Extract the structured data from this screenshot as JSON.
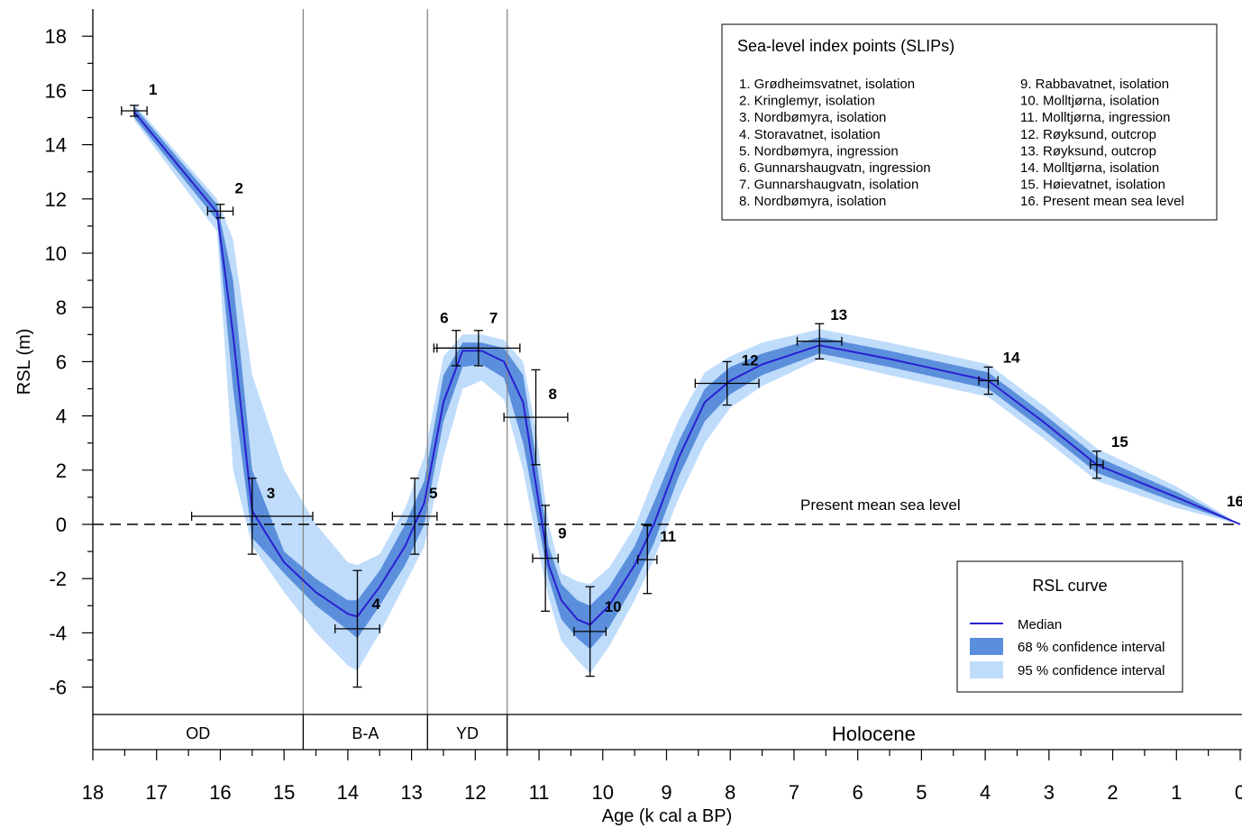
{
  "chart_data": {
    "type": "line",
    "xlabel": "Age (k cal a BP)",
    "ylabel": "RSL (m)",
    "xlim": [
      18,
      0
    ],
    "ylim": [
      -7,
      18.5
    ],
    "x_reversed": true,
    "x_ticks": [
      18,
      17,
      16,
      15,
      14,
      13,
      12,
      11,
      10,
      9,
      8,
      7,
      6,
      5,
      4,
      3,
      2,
      1,
      0
    ],
    "y_ticks": [
      -6,
      -4,
      -2,
      0,
      2,
      4,
      6,
      8,
      10,
      12,
      14,
      16,
      18
    ],
    "legend_position": "bottom-right",
    "colors": {
      "median": "#2a1fd0",
      "ci68": "#5b8fdc",
      "ci95": "#bfdcfb",
      "errorbar": "#000000"
    },
    "reference_line": {
      "y": 0,
      "label": "Present mean sea level",
      "style": "dashed"
    },
    "chronozone_boundaries": [
      14.7,
      12.75,
      11.5
    ],
    "chronozones": [
      {
        "label": "OD",
        "from": 18,
        "to": 14.7
      },
      {
        "label": "B-A",
        "from": 14.7,
        "to": 12.75
      },
      {
        "label": "YD",
        "from": 12.75,
        "to": 11.5
      },
      {
        "label": "Holocene",
        "from": 11.5,
        "to": 0
      }
    ],
    "series": [
      {
        "name": "Median",
        "x": [
          17.35,
          16.05,
          15.8,
          15.5,
          15.0,
          14.5,
          14.0,
          13.85,
          13.5,
          13.1,
          12.8,
          12.5,
          12.2,
          11.9,
          11.55,
          11.25,
          11.05,
          10.85,
          10.65,
          10.4,
          10.2,
          9.9,
          9.5,
          9.2,
          8.8,
          8.4,
          8.0,
          7.5,
          6.6,
          5.5,
          3.95,
          3.1,
          2.25,
          1.0,
          0.0
        ],
        "y": [
          15.2,
          11.5,
          7.0,
          0.5,
          -1.4,
          -2.5,
          -3.3,
          -3.4,
          -2.3,
          -0.8,
          0.8,
          4.5,
          6.4,
          6.4,
          6.0,
          4.5,
          1.5,
          -1.5,
          -2.8,
          -3.5,
          -3.7,
          -3.0,
          -1.5,
          0.0,
          2.5,
          4.5,
          5.3,
          5.9,
          6.6,
          6.1,
          5.3,
          3.8,
          2.2,
          1.0,
          0.0
        ]
      },
      {
        "name": "68 % confidence interval",
        "x": [
          17.35,
          16.05,
          15.8,
          15.5,
          15.0,
          14.5,
          14.0,
          13.85,
          13.5,
          13.1,
          12.8,
          12.5,
          12.2,
          11.9,
          11.55,
          11.25,
          11.05,
          10.85,
          10.65,
          10.4,
          10.2,
          9.9,
          9.5,
          9.2,
          8.8,
          8.4,
          8.0,
          7.5,
          6.6,
          5.5,
          3.95,
          3.1,
          2.25,
          1.0,
          0.0
        ],
        "lower": [
          15.0,
          11.2,
          5.0,
          -0.5,
          -1.8,
          -3.0,
          -3.9,
          -4.2,
          -3.0,
          -1.5,
          0.0,
          3.8,
          5.8,
          5.9,
          5.4,
          3.0,
          0.5,
          -2.0,
          -3.5,
          -4.2,
          -4.6,
          -3.8,
          -2.2,
          -0.7,
          1.8,
          3.8,
          4.8,
          5.5,
          6.3,
          5.8,
          5.0,
          3.5,
          1.9,
          0.8,
          0.0
        ],
        "upper": [
          15.4,
          11.8,
          9.0,
          2.0,
          -1.0,
          -2.0,
          -2.8,
          -2.8,
          -1.7,
          0.0,
          1.6,
          5.5,
          6.7,
          6.7,
          6.5,
          5.5,
          2.5,
          -0.8,
          -2.2,
          -2.8,
          -3.0,
          -2.3,
          -0.8,
          0.8,
          3.1,
          5.0,
          5.8,
          6.3,
          6.9,
          6.4,
          5.6,
          4.1,
          2.5,
          1.2,
          0.0
        ]
      },
      {
        "name": "95 % confidence interval",
        "x": [
          17.35,
          16.05,
          15.8,
          15.5,
          15.0,
          14.5,
          14.0,
          13.85,
          13.5,
          13.1,
          12.8,
          12.5,
          12.2,
          11.9,
          11.55,
          11.25,
          11.05,
          10.85,
          10.65,
          10.4,
          10.2,
          9.9,
          9.5,
          9.2,
          8.8,
          8.4,
          8.0,
          7.5,
          6.6,
          5.5,
          3.95,
          3.1,
          2.25,
          1.0,
          0.0
        ],
        "lower": [
          14.9,
          10.8,
          2.0,
          -0.8,
          -2.5,
          -4.0,
          -5.2,
          -5.4,
          -4.0,
          -2.2,
          -0.8,
          2.5,
          5.0,
          5.3,
          4.6,
          2.0,
          -0.5,
          -2.7,
          -4.3,
          -5.0,
          -5.5,
          -4.5,
          -2.8,
          -1.3,
          1.0,
          3.0,
          4.3,
          5.1,
          6.1,
          5.5,
          4.7,
          3.2,
          1.6,
          0.6,
          0.0
        ],
        "upper": [
          15.5,
          12.0,
          10.5,
          5.5,
          2.0,
          0.0,
          -1.4,
          -1.5,
          -1.1,
          0.6,
          2.5,
          6.2,
          7.0,
          7.0,
          6.8,
          6.0,
          3.5,
          0.0,
          -1.8,
          -2.1,
          -2.2,
          -1.6,
          -0.1,
          1.7,
          3.9,
          5.6,
          6.2,
          6.7,
          7.2,
          6.7,
          5.9,
          4.4,
          2.8,
          1.4,
          0.0
        ]
      }
    ],
    "slips": [
      {
        "id": "1",
        "age": 17.35,
        "rsl": 15.25,
        "age_err": 0.2,
        "rsl_err": 0.2
      },
      {
        "id": "2",
        "age": 16.0,
        "rsl": 11.55,
        "age_err": 0.2,
        "rsl_err": 0.25
      },
      {
        "id": "3",
        "age": 15.5,
        "rsl": 0.3,
        "age_err": 0.95,
        "rsl_err": 1.4
      },
      {
        "id": "4",
        "age": 13.85,
        "rsl": -3.85,
        "age_err": 0.35,
        "rsl_err": 2.15
      },
      {
        "id": "5",
        "age": 12.95,
        "rsl": 0.3,
        "age_err": 0.35,
        "rsl_err": 1.4
      },
      {
        "id": "6",
        "age": 12.3,
        "rsl": 6.5,
        "age_err": 0.35,
        "rsl_err": 0.65
      },
      {
        "id": "7",
        "age": 11.95,
        "rsl": 6.5,
        "age_err": 0.65,
        "rsl_err": 0.65
      },
      {
        "id": "8",
        "age": 11.05,
        "rsl": 3.95,
        "age_err": 0.5,
        "rsl_err": 1.75
      },
      {
        "id": "9",
        "age": 10.9,
        "rsl": -1.25,
        "age_err": 0.2,
        "rsl_err": 1.95
      },
      {
        "id": "10",
        "age": 10.2,
        "rsl": -3.95,
        "age_err": 0.25,
        "rsl_err": 1.65
      },
      {
        "id": "11",
        "age": 9.3,
        "rsl": -1.3,
        "age_err": 0.15,
        "rsl_err": 1.25
      },
      {
        "id": "12",
        "age": 8.05,
        "rsl": 5.2,
        "age_err": 0.5,
        "rsl_err": 0.8
      },
      {
        "id": "13",
        "age": 6.6,
        "rsl": 6.75,
        "age_err": 0.35,
        "rsl_err": 0.65
      },
      {
        "id": "14",
        "age": 3.95,
        "rsl": 5.3,
        "age_err": 0.15,
        "rsl_err": 0.5
      },
      {
        "id": "15",
        "age": 2.25,
        "rsl": 2.2,
        "age_err": 0.1,
        "rsl_err": 0.5
      },
      {
        "id": "16",
        "age": 0.0,
        "rsl": 0.0,
        "age_err": 0,
        "rsl_err": 0
      }
    ],
    "slip_legend": {
      "title": "Sea-level index points (SLIPs)",
      "column1": [
        "1. Grødheimsvatnet, isolation",
        "2. Kringlemyr, isolation",
        "3. Nordbømyra, isolation",
        "4. Storavatnet, isolation",
        "5. Nordbømyra, ingression",
        "6. Gunnarshaugvatn, ingression",
        "7. Gunnarshaugvatn, isolation",
        "8. Nordbømyra, isolation"
      ],
      "column2": [
        "9. Rabbavatnet, isolation",
        "10. Molltjørna, isolation",
        "11. Molltjørna, ingression",
        "12. Røyksund, outcrop",
        "13. Røyksund, outcrop",
        "14. Molltjørna, isolation",
        "15. Høievatnet, isolation",
        "16. Present mean sea level"
      ]
    },
    "curve_legend": {
      "title": "RSL curve",
      "items": [
        "Median",
        "68 % confidence interval",
        "95 % confidence interval"
      ]
    }
  }
}
